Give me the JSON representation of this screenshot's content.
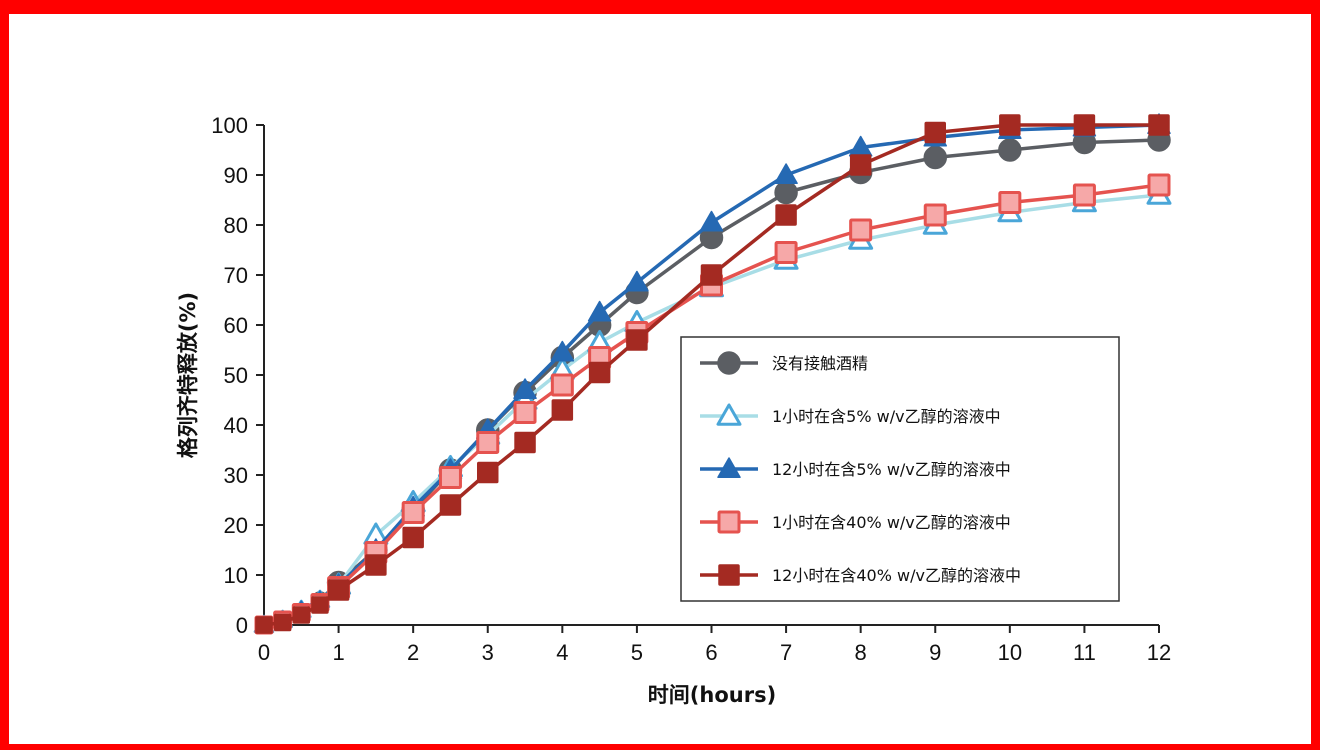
{
  "chart_data": {
    "type": "line",
    "xlabel": "时间(hours)",
    "ylabel": "格列齐特释放(%)",
    "xlim": [
      0,
      12
    ],
    "ylim": [
      0,
      100
    ],
    "xticks": [
      0,
      1,
      2,
      3,
      4,
      5,
      6,
      7,
      8,
      9,
      10,
      11,
      12
    ],
    "yticks": [
      0,
      10,
      20,
      30,
      40,
      50,
      60,
      70,
      80,
      90,
      100
    ],
    "grid": false,
    "legend_position": "bottom-right",
    "series": [
      {
        "name": "没有接触酒精",
        "color": "#5b5e63",
        "marker": "circle",
        "filled": true,
        "x": [
          0,
          0.25,
          0.5,
          0.75,
          1,
          1.5,
          2,
          2.5,
          3,
          3.5,
          4,
          4.5,
          5,
          6,
          7,
          8,
          9,
          10,
          11,
          12
        ],
        "y": [
          0,
          1,
          2.5,
          5,
          8.5,
          15,
          23,
          31,
          39,
          46.5,
          53.5,
          60,
          66.5,
          77.5,
          86.5,
          90.5,
          93.5,
          95,
          96.5,
          97
        ]
      },
      {
        "name": "1小时在含5% w/v乙醇的溶液中",
        "color": "#a8dde6",
        "marker_color": "#4aa6d8",
        "marker": "triangle",
        "filled": false,
        "x": [
          0,
          0.25,
          0.5,
          0.75,
          1,
          1.5,
          2,
          2.5,
          3,
          3.5,
          4,
          4.5,
          5,
          6,
          7,
          8,
          9,
          10,
          11,
          12
        ],
        "y": [
          0,
          1,
          3,
          5,
          8,
          18,
          24.5,
          31.5,
          38,
          45,
          51,
          56.5,
          60.5,
          67.5,
          73,
          77,
          80,
          82.5,
          84.5,
          86
        ]
      },
      {
        "name": "12小时在含5% w/v乙醇的溶液中",
        "color": "#2569b3",
        "marker": "triangle",
        "filled": true,
        "x": [
          0,
          0.25,
          0.5,
          0.75,
          1,
          1.5,
          2,
          2.5,
          3,
          3.5,
          4,
          4.5,
          5,
          6,
          7,
          8,
          9,
          10,
          11,
          12
        ],
        "y": [
          0,
          1,
          3,
          5,
          8,
          15,
          23.5,
          31,
          39,
          47,
          54.5,
          62.5,
          68.5,
          80.5,
          90,
          95.5,
          97.5,
          99,
          99.5,
          100
        ]
      },
      {
        "name": "1小时在含40% w/v乙醇的溶液中",
        "color": "#e5534f",
        "marker_fill": "#f6a8a8",
        "marker": "square",
        "filled": false,
        "x": [
          0,
          0.25,
          0.5,
          0.75,
          1,
          1.5,
          2,
          2.5,
          3,
          3.5,
          4,
          4.5,
          5,
          6,
          7,
          8,
          9,
          10,
          11,
          12
        ],
        "y": [
          0,
          1,
          2.5,
          4.5,
          7.5,
          14.5,
          22.5,
          29.5,
          36.5,
          42.5,
          48,
          53.5,
          58.5,
          68,
          74.5,
          79,
          82,
          84.5,
          86,
          88
        ]
      },
      {
        "name": "12小时在含40% w/v乙醇的溶液中",
        "color": "#a42a22",
        "marker": "square",
        "filled": true,
        "x": [
          0,
          0.25,
          0.5,
          0.75,
          1,
          1.5,
          2,
          2.5,
          3,
          3.5,
          4,
          4.5,
          5,
          6,
          7,
          8,
          9,
          10,
          11,
          12
        ],
        "y": [
          0,
          0.5,
          2,
          4,
          7,
          12,
          17.5,
          24,
          30.5,
          36.5,
          43,
          50.5,
          57,
          70,
          82,
          92,
          98.5,
          100,
          100,
          100
        ]
      }
    ]
  }
}
